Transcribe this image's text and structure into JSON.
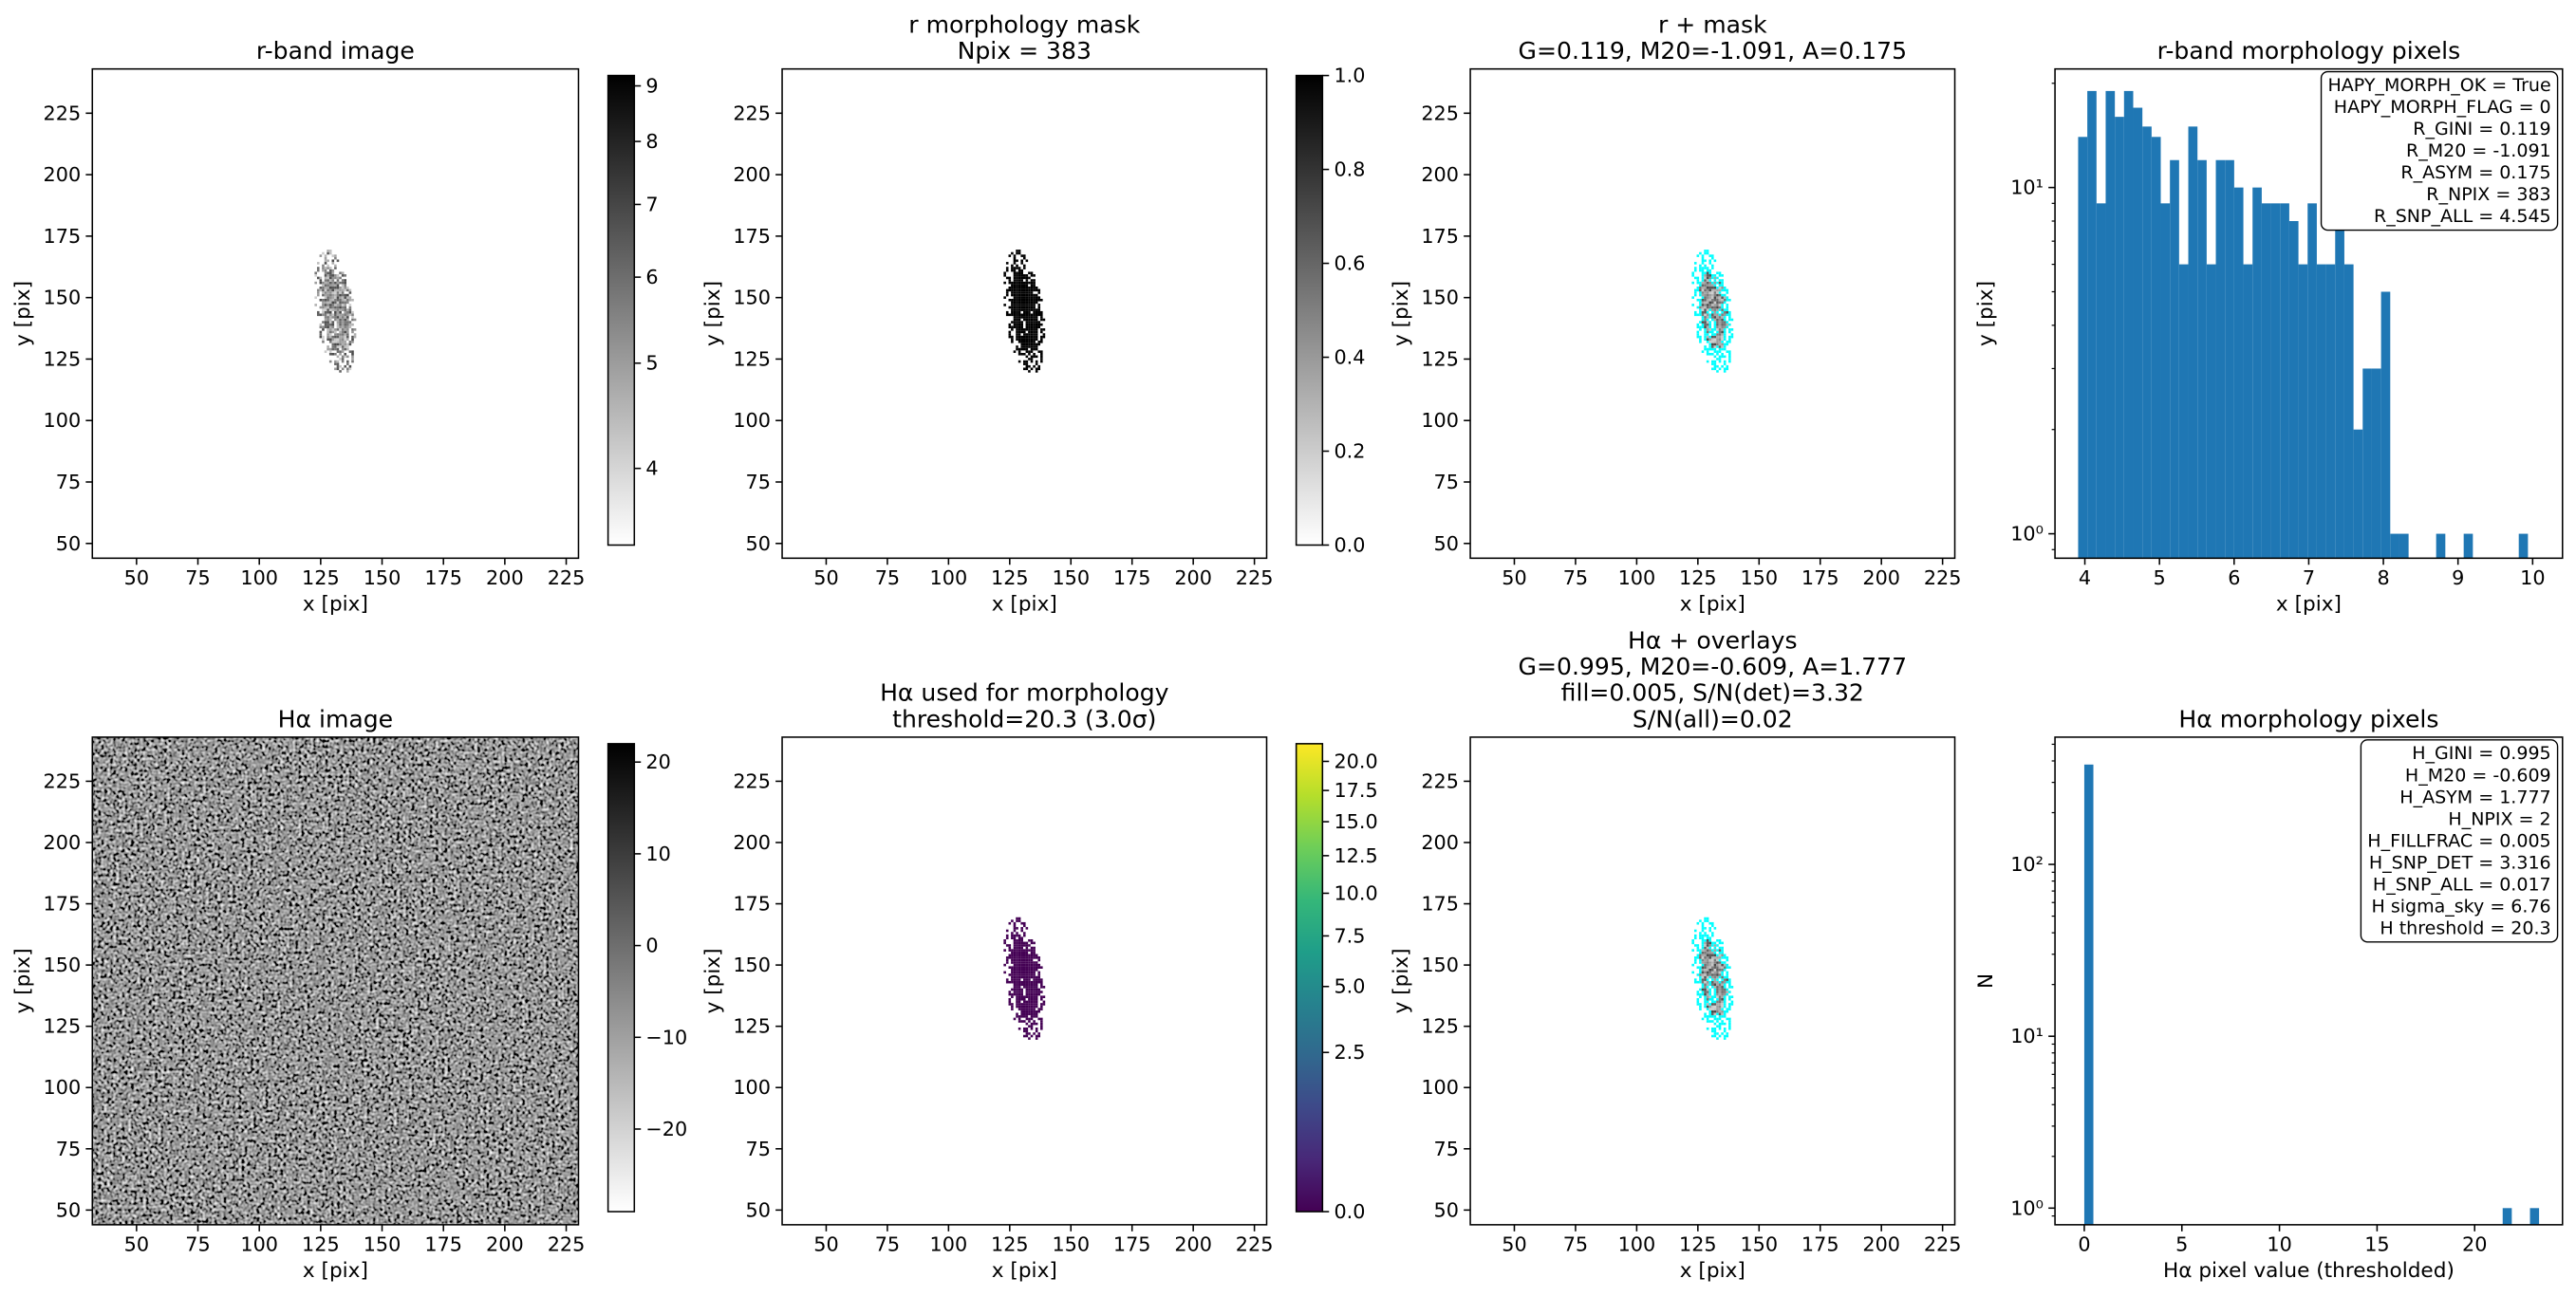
{
  "chart_data": [
    {
      "type": "image",
      "title": [
        "r-band image"
      ],
      "xlabel": "x [pix]",
      "ylabel": "y [pix]",
      "xlim": [
        32,
        230
      ],
      "ylim": [
        44,
        243
      ],
      "xticks": [
        50,
        75,
        100,
        125,
        150,
        175,
        200,
        225
      ],
      "yticks": [
        50,
        75,
        100,
        125,
        150,
        175,
        200,
        225
      ],
      "cmap": "gray_r",
      "colorbar": {
        "lim": [
          3.4,
          9.2
        ],
        "scale": "log",
        "ticks": [
          4,
          5,
          6,
          7,
          8,
          9
        ]
      }
    },
    {
      "type": "image",
      "title": [
        "r morphology mask",
        "Npix = 383"
      ],
      "xlabel": "x [pix]",
      "ylabel": "y [pix]",
      "xlim": [
        32,
        230
      ],
      "ylim": [
        44,
        243
      ],
      "xticks": [
        50,
        75,
        100,
        125,
        150,
        175,
        200,
        225
      ],
      "yticks": [
        50,
        75,
        100,
        125,
        150,
        175,
        200,
        225
      ],
      "cmap": "gray_r",
      "colorbar": {
        "lim": [
          0,
          1
        ],
        "scale": "linear",
        "ticks": [
          {
            "value": 0,
            "label": "0.0"
          },
          0.2,
          0.4,
          0.6,
          0.8,
          {
            "value": 1,
            "label": "1.0"
          }
        ]
      }
    },
    {
      "type": "image",
      "title": [
        "r + mask",
        "G=0.119, M20=-1.091, A=0.175"
      ],
      "xlabel": "x [pix]",
      "ylabel": "y [pix]",
      "xlim": [
        32,
        230
      ],
      "ylim": [
        44,
        243
      ],
      "xticks": [
        50,
        75,
        100,
        125,
        150,
        175,
        200,
        225
      ],
      "yticks": [
        50,
        75,
        100,
        125,
        150,
        175,
        200,
        225
      ],
      "cmap": "gray_r",
      "overlay_color": "#00ffff"
    },
    {
      "type": "histogram",
      "title": [
        "r-band morphology pixels"
      ],
      "xlabel": "x [pix]",
      "ylabel": "y [pix]",
      "color": "#1f77b4",
      "log_y": true,
      "bins": [
        3.91,
        4.033,
        4.156,
        4.279,
        4.402,
        4.525,
        4.648,
        4.771,
        4.894,
        5.017,
        5.14,
        5.263,
        5.386,
        5.509,
        5.632,
        5.755,
        5.878,
        6.001,
        6.124,
        6.247,
        6.37,
        6.493,
        6.616,
        6.739,
        6.862,
        6.985,
        7.108,
        7.231,
        7.354,
        7.477,
        7.6,
        7.723,
        7.846,
        7.969,
        8.092,
        8.215,
        8.338,
        8.461,
        8.584,
        8.707,
        8.83,
        8.953,
        9.076,
        9.199,
        9.322,
        9.445,
        9.568,
        9.691,
        9.814,
        9.937,
        10.06
      ],
      "values": [
        14,
        19,
        9,
        19,
        16,
        19,
        17,
        15,
        14,
        9,
        12,
        6,
        15,
        12,
        6,
        12,
        12,
        10,
        6,
        10,
        9,
        9,
        9,
        8,
        6,
        9,
        6,
        6,
        8,
        6,
        2,
        3,
        3,
        5,
        1,
        1,
        0,
        0,
        0,
        1,
        0,
        0,
        1,
        0,
        0,
        0,
        0,
        0,
        1,
        0
      ],
      "xlim": [
        3.6,
        10.4
      ],
      "ylim": [
        0.85,
        22
      ],
      "xticks": [
        4,
        5,
        6,
        7,
        8,
        9,
        10
      ],
      "yticks": [
        {
          "value": 1,
          "label": "10⁰"
        },
        {
          "value": 10,
          "label": "10¹"
        }
      ],
      "annotations": [
        "HAPY_MORPH_OK = True",
        "HAPY_MORPH_FLAG = 0",
        "R_GINI = 0.119",
        "R_M20 = -1.091",
        "R_ASYM = 0.175",
        "R_NPIX = 383",
        "R_SNP_ALL = 4.545"
      ]
    },
    {
      "type": "image",
      "title": [
        "Hα image"
      ],
      "xlabel": "x [pix]",
      "ylabel": "y [pix]",
      "xlim": [
        32,
        230
      ],
      "ylim": [
        44,
        243
      ],
      "xticks": [
        50,
        75,
        100,
        125,
        150,
        175,
        200,
        225
      ],
      "yticks": [
        50,
        75,
        100,
        125,
        150,
        175,
        200,
        225
      ],
      "cmap": "gray_r",
      "colorbar": {
        "lim": [
          -29,
          22
        ],
        "scale": "linear",
        "ticks": [
          20,
          10,
          0,
          {
            "value": -10,
            "label": "−10"
          },
          {
            "value": -20,
            "label": "−20"
          }
        ]
      }
    },
    {
      "type": "image",
      "title": [
        "Hα used for morphology",
        "threshold=20.3 (3.0σ)"
      ],
      "xlabel": "x [pix]",
      "ylabel": "y [pix]",
      "xlim": [
        32,
        230
      ],
      "ylim": [
        44,
        243
      ],
      "xticks": [
        50,
        75,
        100,
        125,
        150,
        175,
        200,
        225
      ],
      "yticks": [
        50,
        75,
        100,
        125,
        150,
        175,
        200,
        225
      ],
      "cmap": "viridis",
      "colorbar": {
        "lim": [
          0,
          21.6
        ],
        "scale": "sqrt",
        "ticks": [
          {
            "value": 0,
            "label": "0.0"
          },
          2.5,
          {
            "value": 5,
            "label": "5.0"
          },
          7.5,
          {
            "value": 10,
            "label": "10.0"
          },
          12.5,
          {
            "value": 15,
            "label": "15.0"
          },
          17.5,
          {
            "value": 20,
            "label": "20.0"
          }
        ]
      }
    },
    {
      "type": "image",
      "title": [
        "Hα + overlays",
        "G=0.995, M20=-0.609, A=1.777",
        "fill=0.005, S/N(det)=3.32",
        "S/N(all)=0.02"
      ],
      "xlabel": "x [pix]",
      "ylabel": "y [pix]",
      "xlim": [
        32,
        230
      ],
      "ylim": [
        44,
        243
      ],
      "xticks": [
        50,
        75,
        100,
        125,
        150,
        175,
        200,
        225
      ],
      "yticks": [
        50,
        75,
        100,
        125,
        150,
        175,
        200,
        225
      ],
      "cmap": "gray_r",
      "overlay_color": "#00ffff"
    },
    {
      "type": "histogram",
      "title": [
        "Hα morphology pixels"
      ],
      "xlabel": "Hα pixel value (thresholded)",
      "ylabel": "N",
      "color": "#1f77b4",
      "log_y": true,
      "bins": [
        0,
        0.466,
        0.932,
        1.398,
        1.864,
        2.33,
        2.796,
        3.262,
        3.728,
        4.194,
        4.66,
        5.126,
        5.592,
        6.058,
        6.524,
        6.99,
        7.456,
        7.922,
        8.388,
        8.854,
        9.32,
        9.786,
        10.252,
        10.718,
        11.184,
        11.65,
        12.116,
        12.582,
        13.048,
        13.514,
        13.98,
        14.446,
        14.912,
        15.378,
        15.844,
        16.31,
        16.776,
        17.242,
        17.708,
        18.174,
        18.64,
        19.106,
        19.572,
        20.038,
        20.504,
        20.97,
        21.436,
        21.902,
        22.368,
        22.834,
        23.3
      ],
      "values": [
        381,
        0,
        0,
        0,
        0,
        0,
        0,
        0,
        0,
        0,
        0,
        0,
        0,
        0,
        0,
        0,
        0,
        0,
        0,
        0,
        0,
        0,
        0,
        0,
        0,
        0,
        0,
        0,
        0,
        0,
        0,
        0,
        0,
        0,
        0,
        0,
        0,
        0,
        0,
        0,
        0,
        0,
        0,
        0,
        0,
        0,
        1,
        0,
        0,
        1
      ],
      "xlim": [
        -1.5,
        24.5
      ],
      "ylim": [
        0.8,
        550
      ],
      "xticks": [
        0,
        5,
        10,
        15,
        20
      ],
      "yticks": [
        {
          "value": 1,
          "label": "10⁰"
        },
        {
          "value": 10,
          "label": "10¹"
        },
        {
          "value": 100,
          "label": "10²"
        }
      ],
      "annotations": [
        "H_GINI = 0.995",
        "H_M20 = -0.609",
        "H_ASYM = 1.777",
        "H_NPIX = 2",
        "H_FILLFRAC = 0.005",
        "H_SNP_DET = 3.316",
        "H_SNP_ALL = 0.017",
        "H sigma_sky = 6.76",
        "H threshold = 20.3"
      ]
    }
  ]
}
